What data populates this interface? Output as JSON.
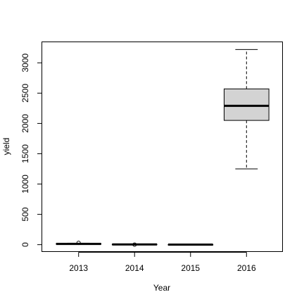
{
  "chart_data": {
    "type": "boxplot",
    "xlabel": "Year",
    "ylabel": "yield",
    "categories": [
      "2013",
      "2014",
      "2015",
      "2016"
    ],
    "ylim": [
      -120,
      3340
    ],
    "yticks": [
      0,
      500,
      1000,
      1500,
      2000,
      2500,
      3000
    ],
    "ytick_labels": [
      "0",
      "500",
      "1000",
      "1500",
      "2000",
      "2500",
      "3000"
    ],
    "grid": false,
    "boxes": [
      {
        "category": "2013",
        "min": 5,
        "q1": 8,
        "median": 12,
        "q3": 18,
        "max": 25,
        "outliers": [
          30
        ]
      },
      {
        "category": "2014",
        "min": 0,
        "q1": 1,
        "median": 3,
        "q3": 6,
        "max": 10,
        "outliers": [
          0
        ]
      },
      {
        "category": "2015",
        "min": 0,
        "q1": 0.5,
        "median": 1,
        "q3": 2,
        "max": 3,
        "outliers": []
      },
      {
        "category": "2016",
        "min": 1250,
        "q1": 2050,
        "median": 2290,
        "q3": 2570,
        "max": 3220,
        "outliers": []
      }
    ],
    "colors": {
      "box_fill": "#d3d3d3",
      "stroke": "#000000"
    }
  }
}
